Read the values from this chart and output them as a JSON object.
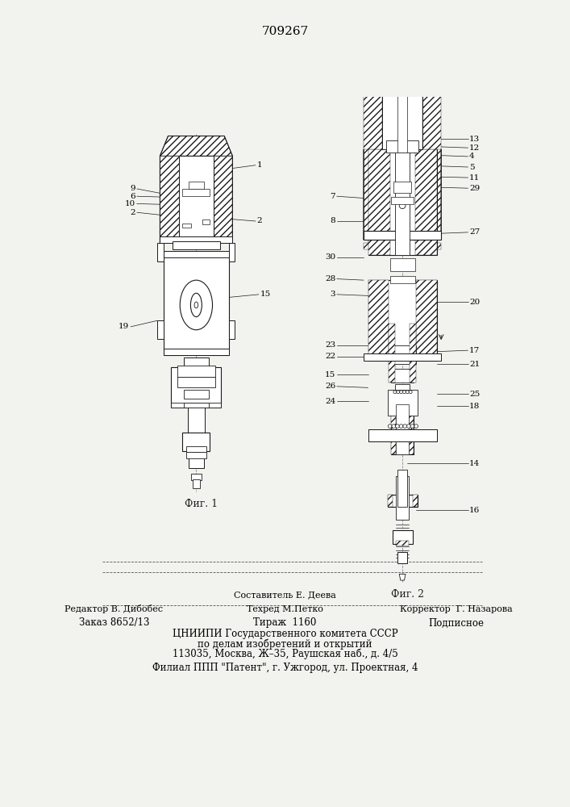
{
  "title_number": "709267",
  "bg_color": "#f2f2ee",
  "line_color": "#1a1a1a",
  "hatch_color": "#1a1a1a",
  "fig1_caption": "Фиг. 1",
  "fig2_caption": "Фиг. 2",
  "footer_line1_left": "Редактор В. Дибобес",
  "footer_line1_center": "Техред М.Петко",
  "footer_line1_right": "Корректор  Г. Назарова",
  "footer_line0_center": "Составитель Е. Деева",
  "footer_zakaz": "Заказ 8652/13",
  "footer_tirazh": "Тираж  1160",
  "footer_podp": "Подписное",
  "footer_cniip1": "ЦНИИПИ Государственного комитета СССР",
  "footer_cniip2": "по делам изобретений и открытий",
  "footer_cniip3": "113035, Москва, Ж–35, Раушская наб., д. 4/5",
  "footer_filial": "Филиал ППП \"Патент\", г. Ужгород, ул. Проектная, 4"
}
